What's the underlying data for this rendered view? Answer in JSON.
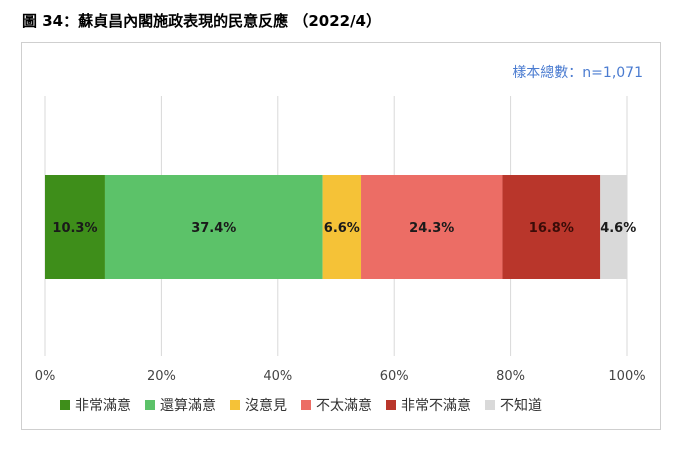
{
  "figure_title": "圖 34：蘇貞昌內閣施政表現的民意反應 （2022/4）",
  "chart_data": {
    "type": "bar",
    "orientation": "horizontal",
    "stacked": true,
    "sample_note": "樣本總數：n=1,071",
    "xlim": [
      0,
      100
    ],
    "x_ticks": [
      "0%",
      "20%",
      "40%",
      "60%",
      "80%",
      "100%"
    ],
    "grid": true,
    "legend_position": "bottom",
    "series": [
      {
        "name": "非常滿意",
        "value": 10.3,
        "label": "10.3%",
        "color": "#3e8e1a"
      },
      {
        "name": "還算滿意",
        "value": 37.4,
        "label": "37.4%",
        "color": "#5cc269"
      },
      {
        "name": "沒意見",
        "value": 6.6,
        "label": "6.6%",
        "color": "#f5c237"
      },
      {
        "name": "不太滿意",
        "value": 24.3,
        "label": "24.3%",
        "color": "#ec6d65"
      },
      {
        "name": "非常不滿意",
        "value": 16.8,
        "label": "16.8%",
        "color": "#b9362b"
      },
      {
        "name": "不知道",
        "value": 4.6,
        "label": "4.6%",
        "color": "#d9d9d9"
      }
    ]
  }
}
